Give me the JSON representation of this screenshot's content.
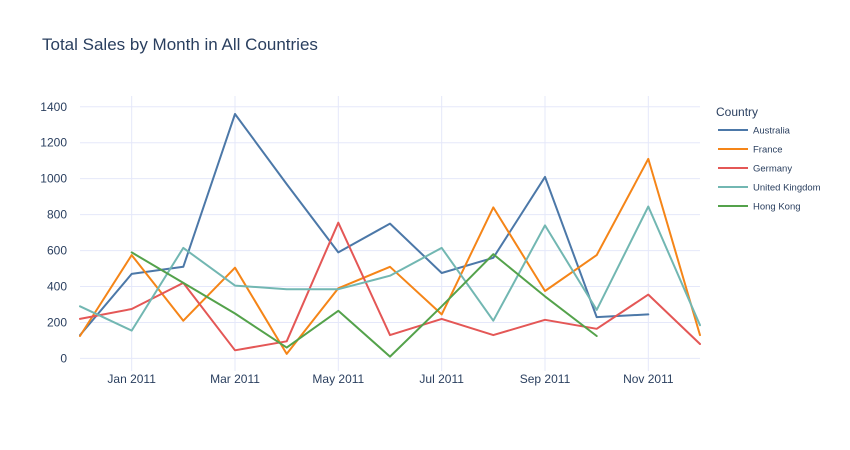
{
  "chart_data": {
    "type": "line",
    "title": "Total Sales by Month in All Countries",
    "xlabel": "",
    "ylabel": "",
    "x": [
      "2010-12",
      "2011-01",
      "2011-02",
      "2011-03",
      "2011-04",
      "2011-05",
      "2011-06",
      "2011-07",
      "2011-08",
      "2011-09",
      "2011-10",
      "2011-11",
      "2011-12"
    ],
    "x_tick_labels": [
      "Jan 2011",
      "Mar 2011",
      "May 2011",
      "Jul 2011",
      "Sep 2011",
      "Nov 2011"
    ],
    "x_tick_positions": [
      "2011-01",
      "2011-03",
      "2011-05",
      "2011-07",
      "2011-09",
      "2011-11"
    ],
    "y_ticks": [
      0,
      200,
      400,
      600,
      800,
      1000,
      1200,
      1400
    ],
    "y_tick_labels": [
      "0",
      "200",
      "400",
      "600",
      "800",
      "1000",
      "1200",
      "1400"
    ],
    "ylim": [
      -70,
      1460
    ],
    "grid": true,
    "legend": {
      "title": "Country",
      "placement": "right"
    },
    "series": [
      {
        "name": "Australia",
        "color": "#4c78a8",
        "values": [
          130,
          470,
          510,
          1360,
          970,
          590,
          750,
          475,
          560,
          1010,
          230,
          245,
          null
        ]
      },
      {
        "name": "France",
        "color": "#f58518",
        "values": [
          125,
          575,
          210,
          505,
          25,
          390,
          510,
          245,
          840,
          375,
          575,
          1110,
          130
        ]
      },
      {
        "name": "Germany",
        "color": "#e45756",
        "values": [
          220,
          275,
          420,
          45,
          95,
          755,
          130,
          220,
          130,
          215,
          165,
          355,
          80
        ]
      },
      {
        "name": "United Kingdom",
        "color": "#72b7b2",
        "values": [
          290,
          155,
          615,
          405,
          385,
          385,
          460,
          615,
          210,
          740,
          270,
          845,
          185
        ]
      },
      {
        "name": "Hong Kong",
        "color": "#54a24b",
        "values": [
          null,
          590,
          420,
          250,
          60,
          265,
          10,
          290,
          580,
          345,
          125,
          null,
          null
        ]
      }
    ]
  }
}
